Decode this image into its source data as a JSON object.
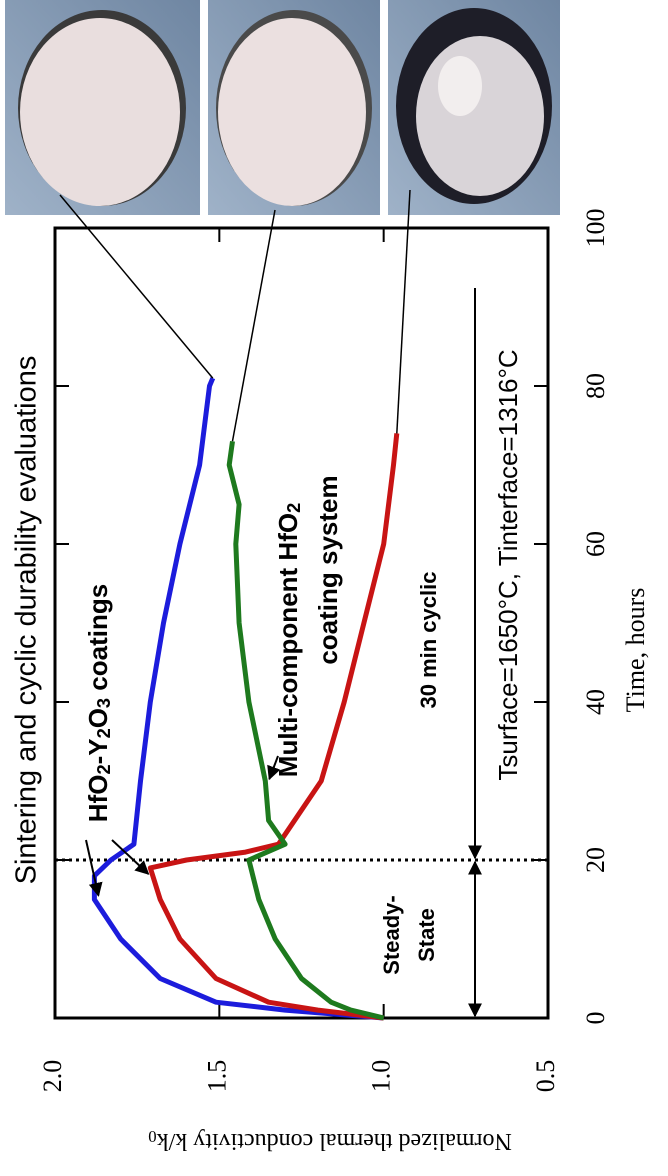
{
  "chart_data": {
    "type": "line",
    "title": "Sintering and cyclic durability evaluations",
    "xlabel": "Time, hours",
    "ylabel": "Normalized thermal conductivity k/k0",
    "xlim": [
      0,
      100
    ],
    "xticks": [
      0,
      20,
      40,
      60,
      80,
      100
    ],
    "ylim": [
      0.5,
      2.0
    ],
    "yticks": [
      0.5,
      {
        "value": 1,
        "label": "1.0"
      },
      1.5,
      {
        "value": 2,
        "label": "2.0"
      }
    ],
    "vline_x": 20,
    "annotations": [
      "HfO2-Y2O3 coatings",
      "Multi-component HfO2",
      "coating system",
      "30 min cyclic",
      "Steady-",
      "State",
      "Tsurface=1650°C, Tinterface=1316°C"
    ],
    "series": [
      {
        "color": "#1c1cdc",
        "x": [
          0,
          1,
          2,
          5,
          10,
          15,
          18,
          20,
          22,
          30,
          40,
          50,
          60,
          70,
          80,
          81
        ],
        "values": [
          1.0,
          1.3,
          1.51,
          1.68,
          1.8,
          1.88,
          1.88,
          1.83,
          1.76,
          1.74,
          1.71,
          1.67,
          1.62,
          1.56,
          1.53,
          1.52
        ]
      },
      {
        "color": "#c81414",
        "x": [
          0,
          1,
          2,
          5,
          10,
          15,
          19,
          20,
          21,
          22,
          30,
          40,
          50,
          60,
          70,
          74
        ],
        "values": [
          1.0,
          1.2,
          1.35,
          1.51,
          1.62,
          1.68,
          1.71,
          1.6,
          1.42,
          1.32,
          1.19,
          1.12,
          1.06,
          1.0,
          0.97,
          0.96
        ]
      },
      {
        "color": "#1e7a1e",
        "x": [
          0,
          1,
          2,
          5,
          10,
          15,
          20,
          22,
          25,
          30,
          40,
          50,
          60,
          65,
          70,
          73
        ],
        "values": [
          1.0,
          1.1,
          1.16,
          1.25,
          1.33,
          1.38,
          1.41,
          1.3,
          1.35,
          1.36,
          1.41,
          1.44,
          1.45,
          1.44,
          1.47,
          1.46
        ]
      }
    ]
  }
}
